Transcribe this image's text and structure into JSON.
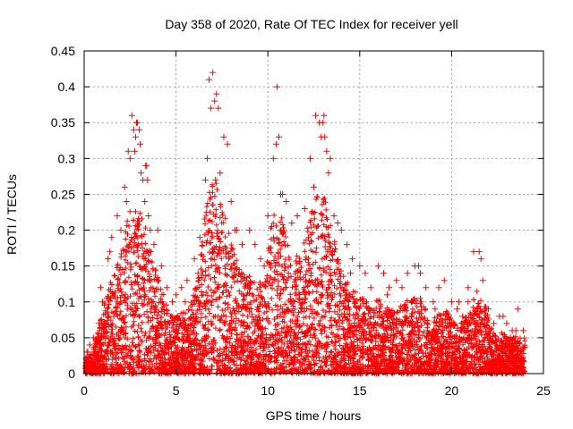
{
  "chart_data": {
    "type": "scatter",
    "title": "Day 358 of 2020, Rate Of TEC Index for receiver yell",
    "xlabel": "GPS time / hours",
    "ylabel": "ROTI / TECUs",
    "xlim": [
      0,
      25
    ],
    "ylim": [
      0,
      0.45
    ],
    "xticks": [
      0,
      5,
      10,
      15,
      20,
      25
    ],
    "yticks": [
      0,
      0.05,
      0.1,
      0.15,
      0.2,
      0.25,
      0.3,
      0.35,
      0.4,
      0.45
    ],
    "xtick_labels": [
      "0",
      "5",
      "10",
      "15",
      "20",
      "25"
    ],
    "ytick_labels": [
      "0",
      "0.05",
      "0.1",
      "0.15",
      "0.2",
      "0.25",
      "0.3",
      "0.35",
      "0.4",
      "0.45"
    ],
    "grid": true,
    "marker": "+",
    "series": [
      {
        "name": "ROTI",
        "color": "#ff0000",
        "x": [
          0.1,
          0.2,
          0.3,
          0.5,
          0.8,
          1.0,
          1.3,
          1.5,
          1.8,
          2.0,
          2.2,
          2.4,
          2.5,
          2.6,
          2.7,
          2.8,
          2.9,
          3.0,
          3.1,
          3.2,
          3.3,
          3.4,
          3.5,
          3.6,
          3.8,
          4.0,
          4.2,
          4.5,
          4.8,
          5.0,
          5.3,
          5.6,
          6.0,
          6.3,
          6.6,
          6.8,
          7.0,
          7.1,
          7.2,
          7.3,
          7.4,
          7.6,
          7.8,
          8.0,
          8.3,
          8.6,
          9.0,
          9.3,
          9.6,
          10.0,
          10.3,
          10.5,
          10.6,
          10.8,
          11.0,
          11.3,
          11.6,
          12.0,
          12.3,
          12.6,
          12.8,
          13.0,
          13.1,
          13.2,
          13.4,
          13.6,
          13.8,
          14.0,
          14.3,
          14.6,
          15.0,
          15.3,
          15.6,
          16.0,
          16.3,
          16.6,
          17.0,
          17.3,
          17.6,
          18.0,
          18.3,
          18.6,
          19.0,
          19.3,
          19.6,
          20.0,
          20.3,
          20.6,
          20.9,
          21.2,
          21.5,
          21.7,
          22.0,
          22.3,
          22.6,
          23.0,
          23.3,
          23.6,
          23.9,
          0.15,
          0.9,
          1.4,
          2.3,
          2.75,
          2.85,
          3.05,
          3.35,
          3.45,
          5.5,
          6.2,
          6.7,
          6.9,
          7.15,
          8.2,
          9.8,
          10.45,
          10.7,
          12.5,
          12.9,
          13.05,
          13.3,
          14.5,
          16.5,
          18.2,
          19.1,
          20.4,
          20.9,
          21.6,
          22.8,
          23.5
        ],
        "y": [
          0.02,
          0.03,
          0.04,
          0.05,
          0.07,
          0.1,
          0.16,
          0.19,
          0.22,
          0.2,
          0.26,
          0.31,
          0.3,
          0.36,
          0.34,
          0.33,
          0.35,
          0.34,
          0.28,
          0.27,
          0.24,
          0.29,
          0.22,
          0.2,
          0.18,
          0.2,
          0.15,
          0.12,
          0.1,
          0.11,
          0.12,
          0.13,
          0.16,
          0.19,
          0.27,
          0.41,
          0.42,
          0.38,
          0.39,
          0.37,
          0.28,
          0.33,
          0.32,
          0.24,
          0.2,
          0.18,
          0.2,
          0.18,
          0.16,
          0.22,
          0.3,
          0.4,
          0.33,
          0.25,
          0.24,
          0.21,
          0.22,
          0.23,
          0.3,
          0.36,
          0.35,
          0.35,
          0.33,
          0.31,
          0.3,
          0.22,
          0.21,
          0.2,
          0.18,
          0.16,
          0.15,
          0.14,
          0.12,
          0.15,
          0.14,
          0.12,
          0.13,
          0.12,
          0.14,
          0.15,
          0.14,
          0.12,
          0.1,
          0.12,
          0.13,
          0.1,
          0.09,
          0.08,
          0.1,
          0.17,
          0.17,
          0.13,
          0.09,
          0.07,
          0.08,
          0.07,
          0.06,
          0.09,
          0.06,
          0.03,
          0.12,
          0.17,
          0.24,
          0.31,
          0.35,
          0.32,
          0.29,
          0.27,
          0.1,
          0.14,
          0.3,
          0.37,
          0.27,
          0.2,
          0.15,
          0.32,
          0.25,
          0.26,
          0.33,
          0.36,
          0.28,
          0.14,
          0.11,
          0.15,
          0.09,
          0.1,
          0.12,
          0.16,
          0.08,
          0.06
        ]
      }
    ]
  }
}
